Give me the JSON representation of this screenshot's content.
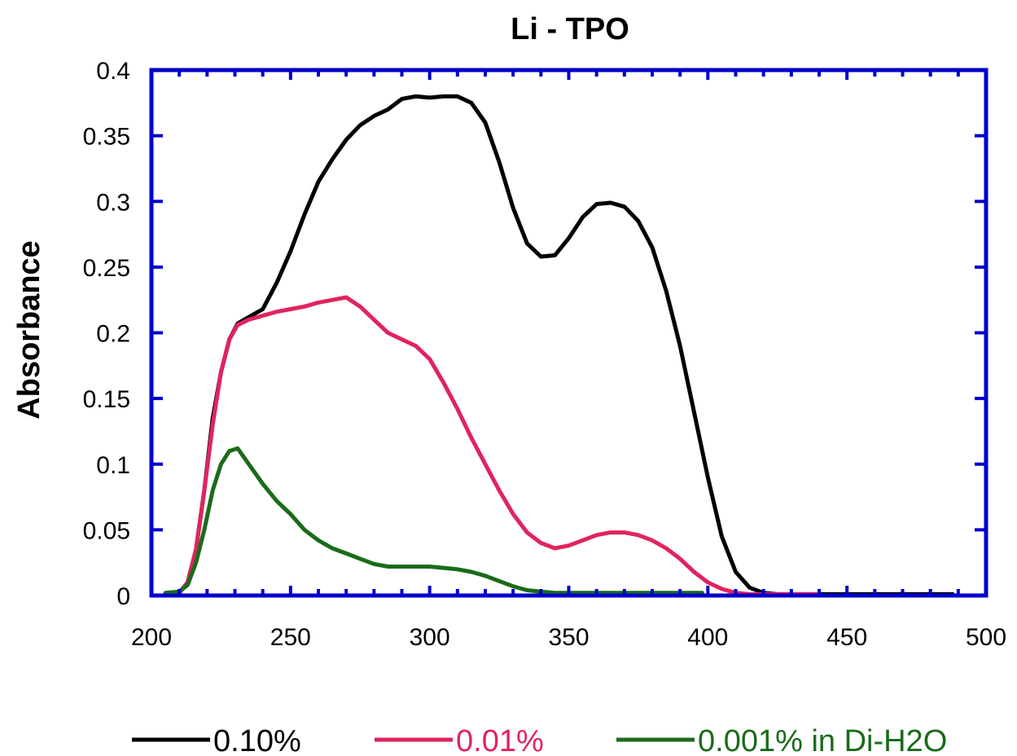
{
  "chart_data": {
    "type": "line",
    "title": "Li - TPO",
    "xlabel": "",
    "ylabel": "Absorbance",
    "xlim": [
      200,
      500
    ],
    "ylim": [
      0,
      0.4
    ],
    "x_ticks": [
      "200",
      "250",
      "300",
      "350",
      "400",
      "450",
      "500"
    ],
    "y_ticks": [
      "0",
      "0.05",
      "0.1",
      "0.15",
      "0.2",
      "0.25",
      "0.3",
      "0.35",
      "0.4"
    ],
    "frame_color": "#0000cc",
    "grid": false,
    "legend_position": "bottom",
    "series": [
      {
        "name": "0.10%",
        "color": "#000000",
        "x": [
          210,
          213,
          216,
          219,
          222,
          225,
          228,
          231,
          235,
          240,
          245,
          250,
          255,
          260,
          265,
          270,
          275,
          280,
          285,
          290,
          295,
          300,
          305,
          310,
          315,
          320,
          325,
          330,
          335,
          340,
          345,
          350,
          355,
          360,
          365,
          370,
          375,
          380,
          385,
          390,
          395,
          400,
          405,
          410,
          415,
          420,
          425,
          430,
          450,
          488
        ],
        "y": [
          0.002,
          0.01,
          0.035,
          0.08,
          0.135,
          0.17,
          0.195,
          0.207,
          0.212,
          0.218,
          0.238,
          0.262,
          0.29,
          0.315,
          0.332,
          0.347,
          0.358,
          0.365,
          0.37,
          0.378,
          0.38,
          0.379,
          0.38,
          0.38,
          0.375,
          0.36,
          0.33,
          0.295,
          0.268,
          0.258,
          0.259,
          0.272,
          0.288,
          0.298,
          0.299,
          0.296,
          0.285,
          0.265,
          0.232,
          0.19,
          0.14,
          0.09,
          0.045,
          0.018,
          0.006,
          0.002,
          0.001,
          0.001,
          0.001,
          0.001
        ]
      },
      {
        "name": "0.01%",
        "color": "#e0245e",
        "x": [
          210,
          213,
          216,
          219,
          222,
          225,
          228,
          231,
          235,
          240,
          245,
          250,
          255,
          260,
          265,
          270,
          275,
          280,
          285,
          290,
          295,
          300,
          305,
          310,
          315,
          320,
          325,
          330,
          335,
          340,
          345,
          350,
          355,
          360,
          365,
          370,
          375,
          380,
          385,
          390,
          395,
          400,
          405,
          410,
          415,
          420,
          425,
          430,
          440
        ],
        "y": [
          0.002,
          0.01,
          0.035,
          0.08,
          0.13,
          0.17,
          0.195,
          0.206,
          0.21,
          0.213,
          0.216,
          0.218,
          0.22,
          0.223,
          0.225,
          0.227,
          0.22,
          0.21,
          0.2,
          0.195,
          0.19,
          0.18,
          0.162,
          0.142,
          0.12,
          0.1,
          0.08,
          0.062,
          0.048,
          0.04,
          0.036,
          0.038,
          0.042,
          0.046,
          0.048,
          0.048,
          0.046,
          0.042,
          0.036,
          0.028,
          0.018,
          0.01,
          0.005,
          0.002,
          0.001,
          0.001,
          0.001,
          0.001,
          0.001
        ]
      },
      {
        "name": "0.001% in Di-H2O",
        "color": "#1a6b1a",
        "x": [
          205,
          210,
          213,
          216,
          219,
          222,
          225,
          228,
          231,
          235,
          240,
          245,
          250,
          255,
          260,
          265,
          270,
          275,
          280,
          285,
          290,
          295,
          300,
          305,
          310,
          315,
          320,
          325,
          330,
          335,
          340,
          345,
          350,
          370,
          390,
          398
        ],
        "y": [
          0.002,
          0.003,
          0.008,
          0.025,
          0.05,
          0.08,
          0.1,
          0.11,
          0.112,
          0.1,
          0.085,
          0.072,
          0.062,
          0.05,
          0.042,
          0.036,
          0.032,
          0.028,
          0.024,
          0.022,
          0.022,
          0.022,
          0.022,
          0.021,
          0.02,
          0.018,
          0.015,
          0.011,
          0.007,
          0.004,
          0.003,
          0.002,
          0.002,
          0.002,
          0.002,
          0.002
        ]
      }
    ]
  }
}
